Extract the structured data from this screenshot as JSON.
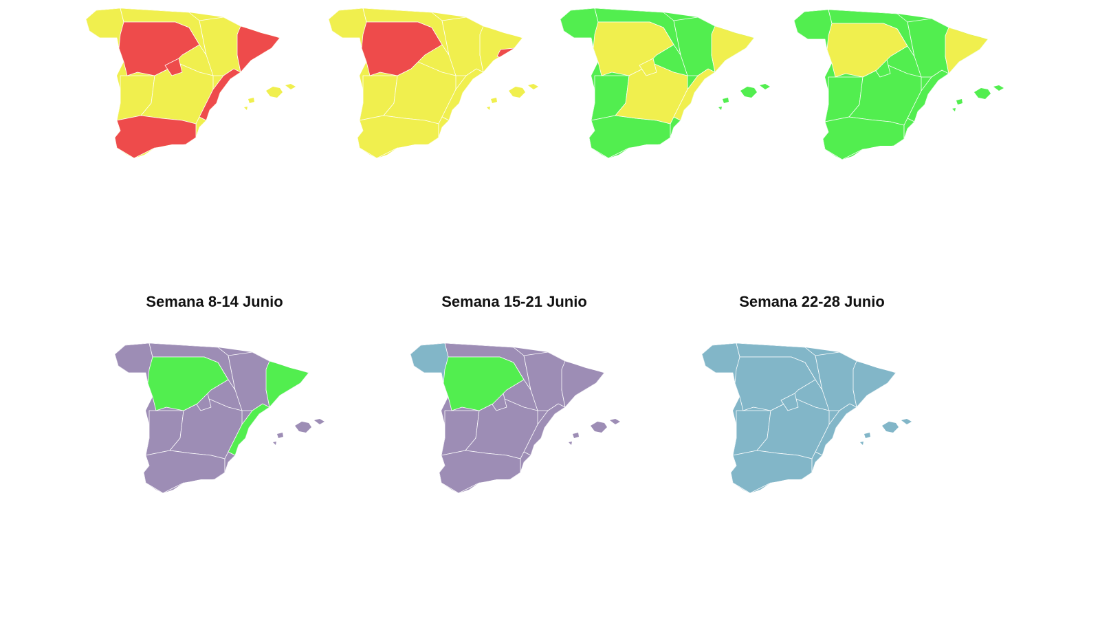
{
  "titles": [
    "Semana 8-14 Junio",
    "Semana 15-21 Junio",
    "Semana 22-28 Junio"
  ]
}
